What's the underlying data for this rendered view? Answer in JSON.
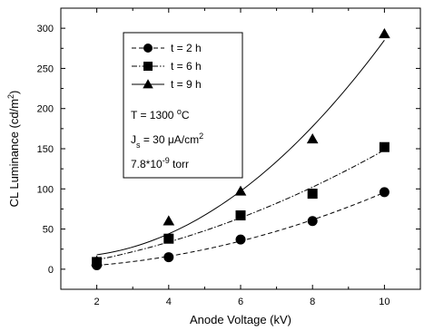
{
  "chart_data": {
    "type": "line",
    "title": "",
    "xlabel": "Anode Voltage (kV)",
    "ylabel": "CL Luminance (cd/m²)",
    "ylabel_parts": {
      "main": "CL Luminance (cd/m",
      "sup": "2",
      "close": ")"
    },
    "xlim": [
      1,
      11
    ],
    "ylim": [
      -25,
      325
    ],
    "xticks": [
      2,
      4,
      6,
      8,
      10
    ],
    "yticks": [
      0,
      50,
      100,
      150,
      200,
      250,
      300
    ],
    "grid": false,
    "legend_position": "top-left",
    "series": [
      {
        "name": "t = 2 h",
        "marker": "circle",
        "line_style": "dashed",
        "x": [
          2,
          4,
          6,
          8,
          10
        ],
        "y": [
          5,
          15,
          37,
          60,
          96
        ]
      },
      {
        "name": "t = 6 h",
        "marker": "square",
        "line_style": "dash-dot",
        "x": [
          2,
          4,
          6,
          8,
          10
        ],
        "y": [
          9,
          38,
          67,
          94,
          152
        ]
      },
      {
        "name": "t = 9 h",
        "marker": "triangle",
        "line_style": "solid",
        "x": [
          2,
          4,
          6,
          8,
          10
        ],
        "y": [
          10,
          60,
          97,
          162,
          293
        ]
      }
    ],
    "annotations": {
      "temperature": {
        "prefix": "T = 1300 ",
        "sup": "o",
        "suffix": "C"
      },
      "current_density": {
        "prefix": "J",
        "sub": "s",
        "middle": " = 30 μA/cm",
        "sup": "2"
      },
      "pressure": {
        "prefix": "7.8*10",
        "sup": "-9",
        "suffix": " torr"
      }
    }
  }
}
